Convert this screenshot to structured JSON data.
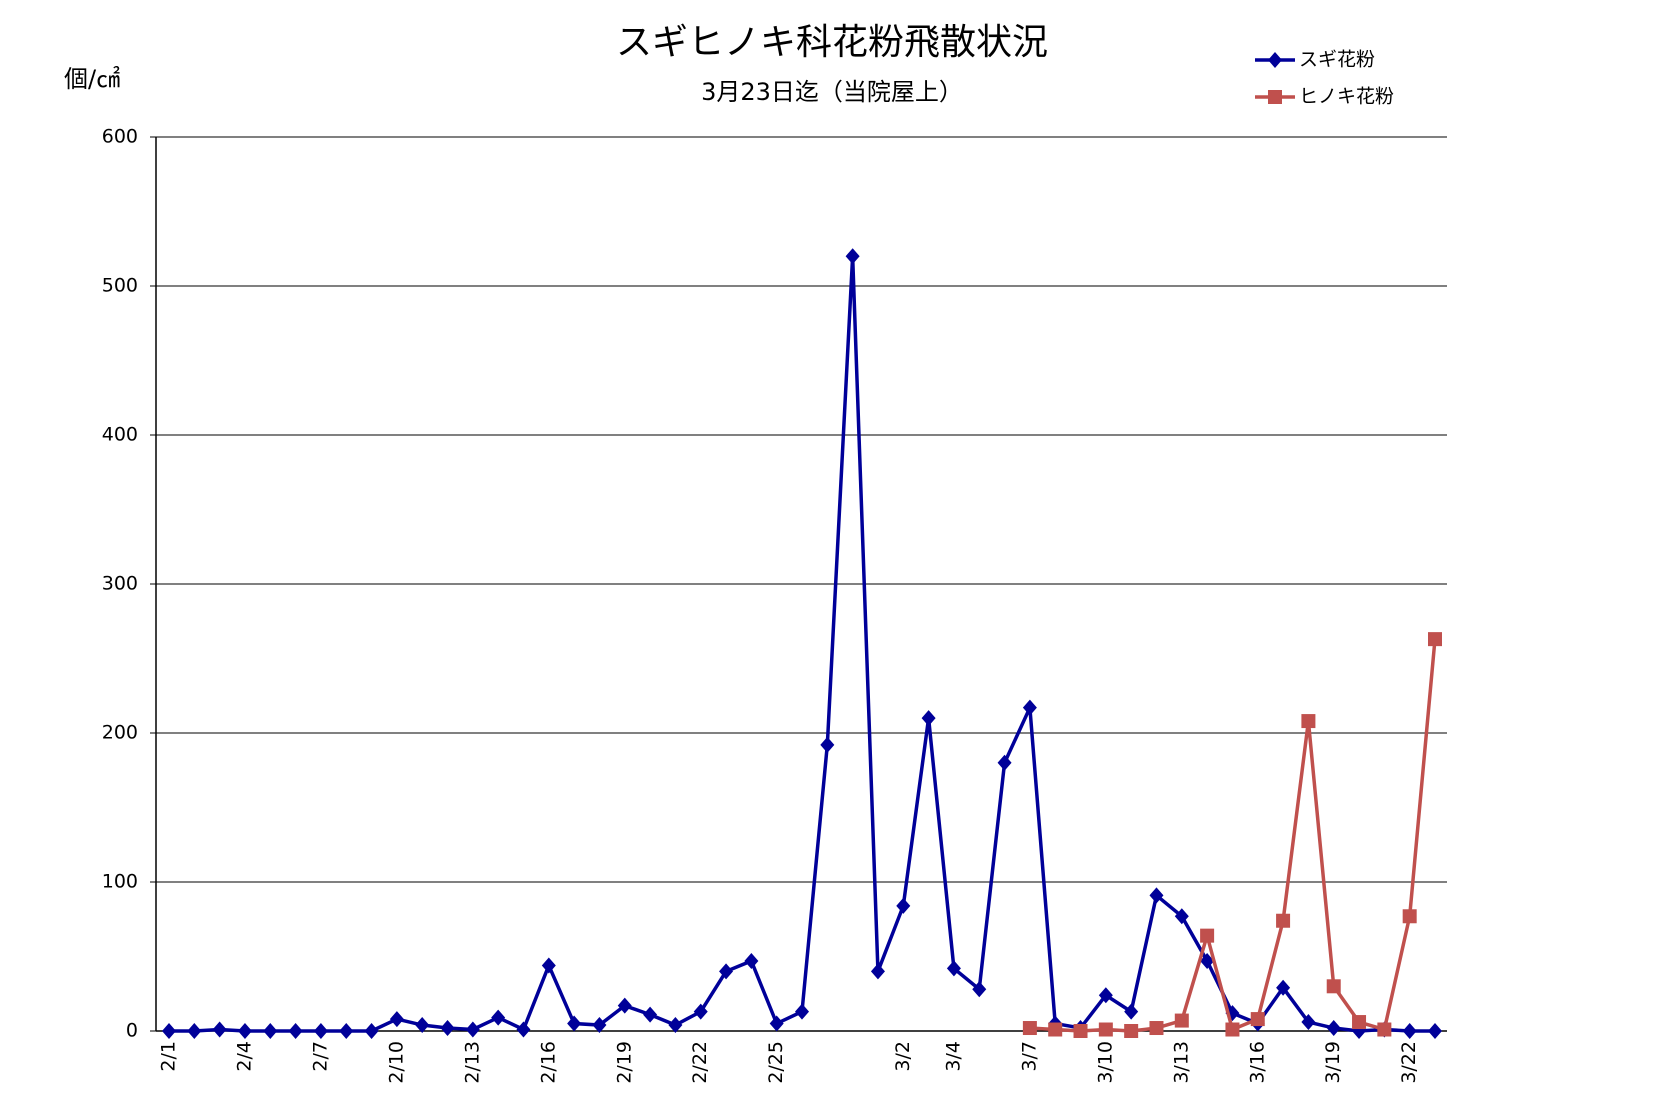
{
  "chart_data": {
    "type": "line",
    "title": "スギヒノキ科花粉飛散状況",
    "subtitle": "3月23日迄（当院屋上）",
    "y_label": "個/㎠",
    "categories": [
      "2/1",
      null,
      null,
      "2/4",
      null,
      null,
      "2/7",
      null,
      null,
      "2/10",
      null,
      null,
      "2/13",
      null,
      null,
      "2/16",
      null,
      null,
      "2/19",
      null,
      null,
      "2/22",
      null,
      null,
      "2/25",
      null,
      null,
      null,
      null,
      "3/2",
      null,
      "3/4",
      null,
      null,
      "3/7",
      null,
      null,
      "3/10",
      null,
      null,
      "3/13",
      null,
      null,
      "3/16",
      null,
      null,
      "3/19",
      null,
      null,
      "3/22",
      null
    ],
    "series": [
      {
        "name": "スギ花粉",
        "color": "#000099",
        "marker": "diamond",
        "values": [
          0,
          0,
          1,
          0,
          0,
          0,
          0,
          0,
          0,
          8,
          4,
          2,
          1,
          9,
          1,
          44,
          5,
          4,
          17,
          11,
          4,
          13,
          40,
          47,
          5,
          13,
          192,
          520,
          40,
          84,
          210,
          42,
          28,
          180,
          217,
          5,
          2,
          24,
          13,
          91,
          77,
          47,
          12,
          5,
          29,
          6,
          2,
          0,
          1,
          0,
          0
        ]
      },
      {
        "name": "ヒノキ花粉",
        "color": "#c0504d",
        "marker": "square",
        "values": [
          null,
          null,
          null,
          null,
          null,
          null,
          null,
          null,
          null,
          null,
          null,
          null,
          null,
          null,
          null,
          null,
          null,
          null,
          null,
          null,
          null,
          null,
          null,
          null,
          null,
          null,
          null,
          null,
          null,
          null,
          null,
          null,
          null,
          null,
          2,
          1,
          0,
          1,
          0,
          2,
          7,
          64,
          1,
          8,
          74,
          208,
          30,
          6,
          1,
          77,
          263
        ]
      }
    ],
    "ylim": [
      0,
      600
    ],
    "yticks": [
      0,
      100,
      200,
      300,
      400,
      500,
      600
    ],
    "grid": true
  }
}
